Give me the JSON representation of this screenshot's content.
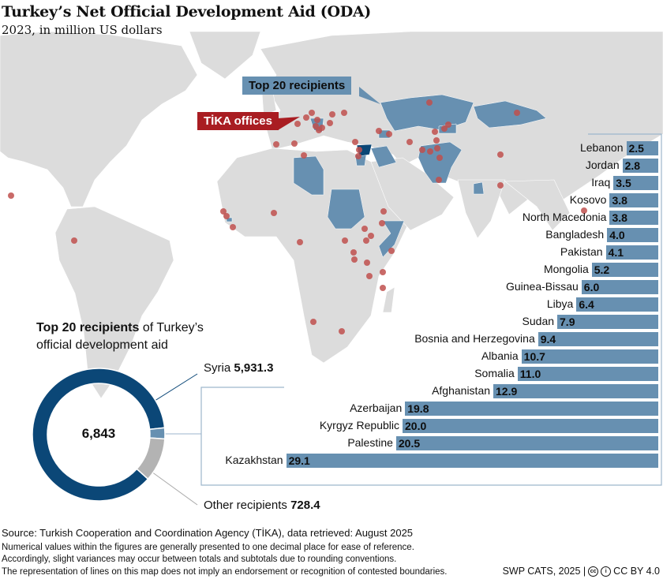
{
  "header": {
    "title": "Turkey’s Net Official Development Aid (ODA)",
    "subtitle": "2023, in million US dollars"
  },
  "legend": {
    "top20_label": "Top 20 recipients",
    "offices_label": "TİKA offices"
  },
  "colors": {
    "land": "#dcdcdc",
    "top20": "#6790b1",
    "syria": "#0b4777",
    "other": "#b3b3b3",
    "office_dot": "#c0504d",
    "office_label_bg": "#a91d22"
  },
  "donut": {
    "heading_bold": "Top 20 recipients",
    "heading_rest": " of Turkey’s",
    "heading_line2": "official development aid",
    "total": "6,843",
    "syria_label": "Syria",
    "syria_value": "5,931.3",
    "other_label": "Other recipients",
    "other_value": "728.4"
  },
  "chart_data": [
    {
      "type": "pie",
      "title": "Top 20 recipients of Turkey’s official development aid",
      "center_label": "6,843",
      "slices": [
        {
          "name": "Syria",
          "value": 5931.3
        },
        {
          "name": "Top 20 recipients (excl. Syria)",
          "value": 183.4
        },
        {
          "name": "Other recipients",
          "value": 728.4
        }
      ]
    },
    {
      "type": "bar",
      "orientation": "horizontal",
      "categories": [
        "Lebanon",
        "Jordan",
        "Iraq",
        "Kosovo",
        "North Macedonia",
        "Bangladesh",
        "Pakistan",
        "Mongolia",
        "Guinea-Bissau",
        "Libya",
        "Sudan",
        "Bosnia and Herzegovina",
        "Albania",
        "Somalia",
        "Afghanistan",
        "Azerbaijan",
        "Kyrgyz Republic",
        "Palestine",
        "Kazakhstan"
      ],
      "values": [
        2.5,
        2.8,
        3.5,
        3.8,
        3.8,
        4.0,
        4.1,
        5.2,
        6.0,
        6.4,
        7.9,
        9.4,
        10.7,
        11.0,
        12.9,
        19.8,
        20.0,
        20.5,
        29.1
      ],
      "labels": [
        "2.5",
        "2.8",
        "3.5",
        "3.8",
        "3.8",
        "4.0",
        "4.1",
        "5.2",
        "6.0",
        "6.4",
        "7.9",
        "9.4",
        "10.7",
        "11.0",
        "12.9",
        "19.8",
        "20.0",
        "20.5",
        "29.1"
      ]
    }
  ],
  "footer": {
    "source": "Source: Turkish Cooperation and Coordination Agency (TİKA), data retrieved: August 2025",
    "note1": "Numerical values within the figures are generally presented to one decimal place for ease of reference.",
    "note2": "Accordingly, slight variances may occur between totals and subtotals due to rounding conventions.",
    "note3": "The representation of lines on this map does not imply an endorsement or recognition of contested boundaries.",
    "credit": "SWP CATS, 2025 |",
    "license": "CC BY 4.0"
  }
}
